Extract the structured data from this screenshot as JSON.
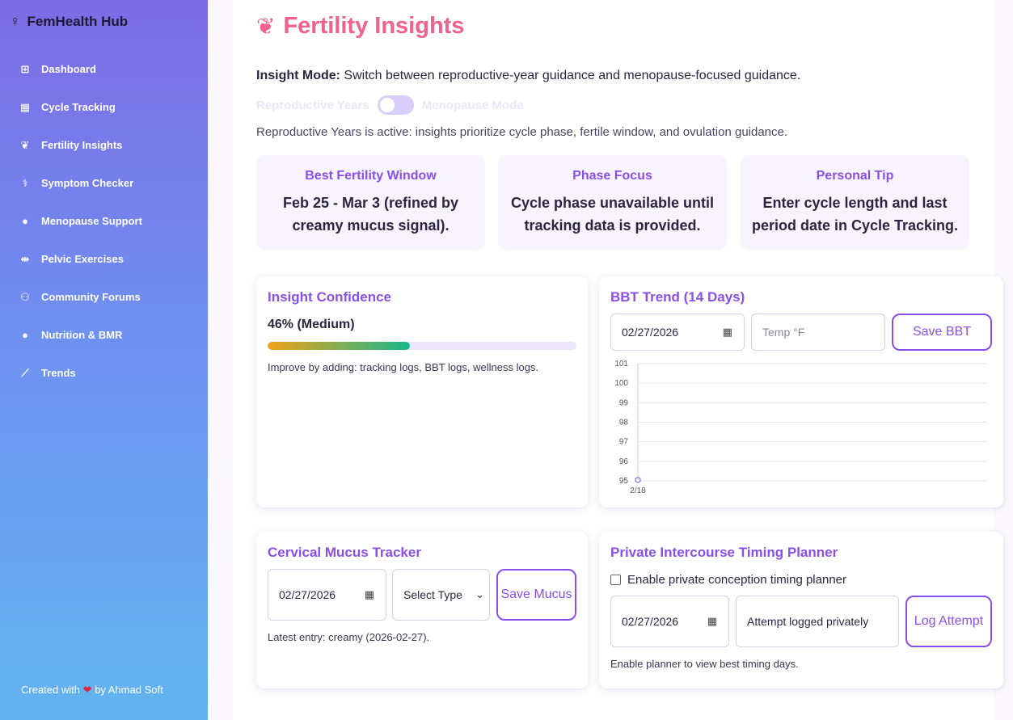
{
  "sidebar": {
    "brand": "FemHealth Hub",
    "items": [
      {
        "label": "Dashboard",
        "icon": "grid-icon"
      },
      {
        "label": "Cycle Tracking",
        "icon": "calendar-icon"
      },
      {
        "label": "Fertility Insights",
        "icon": "seedling-icon"
      },
      {
        "label": "Symptom Checker",
        "icon": "stethoscope-icon"
      },
      {
        "label": "Menopause Support",
        "icon": "fire-icon"
      },
      {
        "label": "Pelvic Exercises",
        "icon": "dumbbell-icon"
      },
      {
        "label": "Community Forums",
        "icon": "users-icon"
      },
      {
        "label": "Nutrition & BMR",
        "icon": "apple-icon"
      },
      {
        "label": "Trends",
        "icon": "chart-line-icon"
      }
    ],
    "credit_prefix": "Created with",
    "credit_suffix": "by Ahmad Soft"
  },
  "page": {
    "title": "Fertility Insights",
    "mode_label": "Insight Mode:",
    "mode_desc": " Switch between reproductive-year guidance and menopause-focused guidance.",
    "toggle_left": "Reproductive Years",
    "toggle_right": "Menopause Mode",
    "active_note": "Reproductive Years is active: insights prioritize cycle phase, fertile window, and ovulation guidance."
  },
  "insights": [
    {
      "heading": "Best Fertility Window",
      "body": "Feb 25 - Mar 3 (refined by creamy mucus signal)."
    },
    {
      "heading": "Phase Focus",
      "body": "Cycle phase unavailable until tracking data is provided."
    },
    {
      "heading": "Personal Tip",
      "body": "Enter cycle length and last period date in Cycle Tracking."
    }
  ],
  "confidence": {
    "heading": "Insight Confidence",
    "value_text": "46% (Medium)",
    "percent": 46,
    "note": "Improve by adding: tracking logs, BBT logs, wellness logs."
  },
  "bbt": {
    "heading": "BBT Trend (14 Days)",
    "date_value": "02/27/2026",
    "temp_placeholder": "Temp °F",
    "save_label": "Save BBT"
  },
  "chart_data": {
    "type": "line",
    "title": "",
    "x": [
      "2/18"
    ],
    "series": [
      {
        "values": [
          95
        ]
      }
    ],
    "ylim": [
      95,
      101
    ],
    "yticks": [
      95,
      96,
      97,
      98,
      99,
      100,
      101
    ],
    "grid": true,
    "xlabel": "",
    "ylabel": ""
  },
  "mucus": {
    "heading": "Cervical Mucus Tracker",
    "date_value": "02/27/2026",
    "select_value": "Select Type",
    "save_label": "Save Mucus",
    "latest": "Latest entry: creamy (2026-02-27)."
  },
  "planner": {
    "heading": "Private Intercourse Timing Planner",
    "checkbox_label": "Enable private conception timing planner",
    "date_value": "02/27/2026",
    "attempt_value": "Attempt logged privately",
    "log_label": "Log Attempt",
    "note": "Enable planner to view best timing days."
  }
}
